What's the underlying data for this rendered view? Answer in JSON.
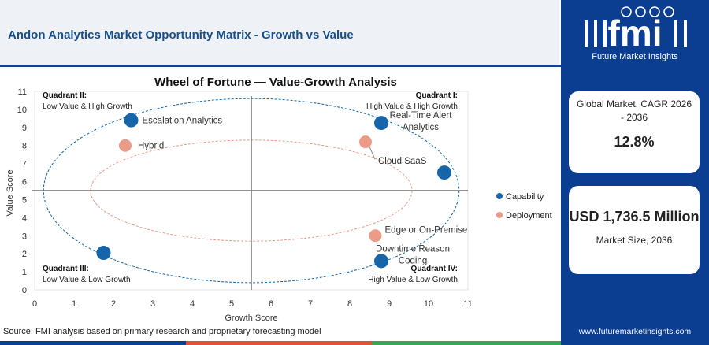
{
  "header": {
    "title": "Andon Analytics Market Opportunity Matrix - Growth vs Value"
  },
  "brand": {
    "logo_text": "fmi",
    "subtitle": "Future Market Insights",
    "website": "www.futuremarketinsights.com"
  },
  "stats": {
    "cagr_label": "Global Market, CAGR 2026 - 2036",
    "cagr_value": "12.8%",
    "size_value": "USD 1,736.5 Million",
    "size_label": "Market Size, 2036"
  },
  "source": "Source: FMI analysis based on primary research and proprietary forecasting model",
  "colors": {
    "capability": "#1565a8",
    "deployment": "#eb9b87",
    "brand": "#0b3d91",
    "title": "#17508e",
    "footer": [
      "#0b3d91",
      "#e1523d",
      "#3aa655",
      "#0b3d91"
    ]
  },
  "chart_data": {
    "type": "scatter",
    "title": "Wheel of Fortune — Value-Growth Analysis",
    "xlabel": "Growth Score",
    "ylabel": "Value Score",
    "xlim": [
      0,
      11
    ],
    "ylim": [
      0,
      11
    ],
    "xticks": [
      "0",
      "1",
      "2",
      "3",
      "4",
      "5",
      "6",
      "7",
      "8",
      "9",
      "10",
      "11"
    ],
    "yticks": [
      "0",
      "1",
      "2",
      "3",
      "4",
      "5",
      "6",
      "7",
      "8",
      "9",
      "10",
      "11"
    ],
    "divider": {
      "x": 5.5,
      "y": 5.5
    },
    "grid": false,
    "legend_position": "right",
    "quadrants": [
      {
        "id": "q2",
        "name": "Quadrant II:",
        "desc": "Low Value & High Growth"
      },
      {
        "id": "q1",
        "name": "Quadrant I:",
        "desc": "High Value & High Growth"
      },
      {
        "id": "q3",
        "name": "Quadrant III:",
        "desc": "Low Value & Low Growth"
      },
      {
        "id": "q4",
        "name": "Quadrant IV:",
        "desc": "High Value & Low Growth"
      }
    ],
    "series": [
      {
        "name": "Capability",
        "points": [
          {
            "x": 2.45,
            "y": 9.4,
            "label": "Escalation Analytics"
          },
          {
            "x": 8.8,
            "y": 9.25,
            "label": "Real-Time Alert Analytics"
          },
          {
            "x": 10.4,
            "y": 6.5,
            "label": ""
          },
          {
            "x": 1.75,
            "y": 2.05,
            "label": ""
          },
          {
            "x": 8.8,
            "y": 1.6,
            "label": "Downtime Reason Coding"
          }
        ]
      },
      {
        "name": "Deployment",
        "points": [
          {
            "x": 2.3,
            "y": 8.0,
            "label": "Hybrid"
          },
          {
            "x": 8.4,
            "y": 8.2,
            "label": "Cloud SaaS"
          },
          {
            "x": 8.65,
            "y": 3.0,
            "label": "Edge or On-Premise"
          }
        ]
      }
    ]
  }
}
